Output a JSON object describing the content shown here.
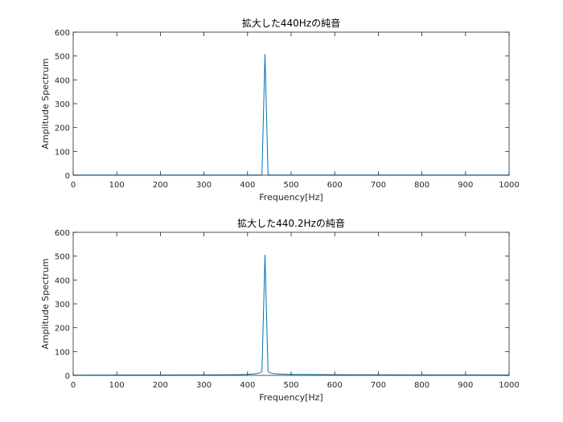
{
  "chart_data": [
    {
      "type": "line",
      "title": "拡大した440Hzの純音",
      "xlabel": "Frequency[Hz]",
      "ylabel": "Amplitude Spectrum",
      "xlim": [
        0,
        1000
      ],
      "ylim": [
        0,
        600
      ],
      "xticks": [
        0,
        100,
        200,
        300,
        400,
        500,
        600,
        700,
        800,
        900,
        1000
      ],
      "yticks": [
        0,
        100,
        200,
        300,
        400,
        500,
        600
      ],
      "grid": false,
      "line_color": "#0072BD",
      "series": [
        {
          "x": [
            0,
            420,
            430,
            433,
            440,
            447,
            450,
            460,
            1000
          ],
          "y": [
            1,
            1,
            1,
            2,
            508,
            2,
            1,
            1,
            1
          ]
        }
      ]
    },
    {
      "type": "line",
      "title": "拡大した440.2Hzの純音",
      "xlabel": "Frequency[Hz]",
      "ylabel": "Amplitude Spectrum",
      "xlim": [
        0,
        1000
      ],
      "ylim": [
        0,
        600
      ],
      "xticks": [
        0,
        100,
        200,
        300,
        400,
        500,
        600,
        700,
        800,
        900,
        1000
      ],
      "yticks": [
        0,
        100,
        200,
        300,
        400,
        500,
        600
      ],
      "grid": false,
      "line_color": "#0072BD",
      "series": [
        {
          "x": [
            0,
            200,
            300,
            380,
            400,
            420,
            430,
            433,
            440,
            447,
            450,
            460,
            480,
            500,
            600,
            800,
            1000
          ],
          "y": [
            1,
            1.5,
            2,
            3,
            4,
            7,
            12,
            18,
            505,
            18,
            12,
            7,
            5,
            4,
            3,
            2,
            1.5
          ]
        }
      ]
    }
  ]
}
